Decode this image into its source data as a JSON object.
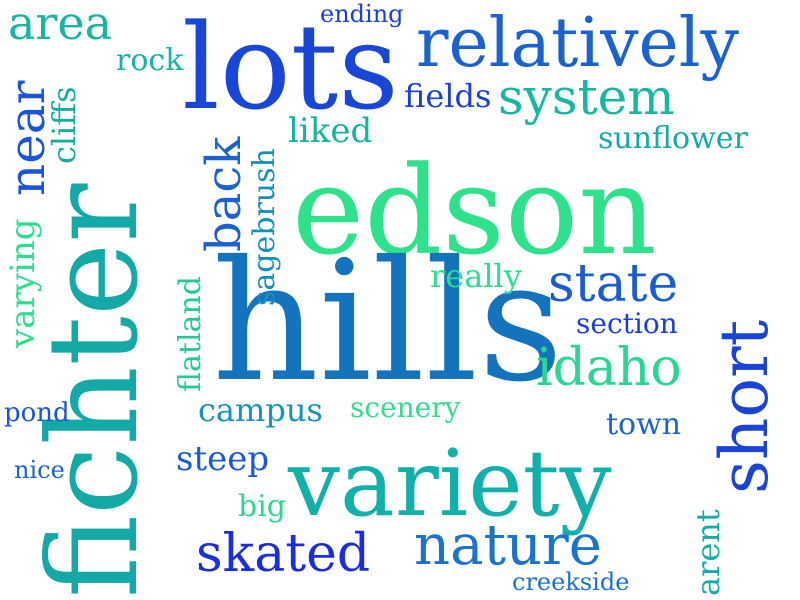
{
  "words": {
    "edson": "edson",
    "hills": "hills",
    "fichter": "fichter",
    "lots": "lots",
    "relatively": "relatively",
    "variety": "variety",
    "system": "system",
    "area": "area",
    "near": "near",
    "back": "back",
    "short": "short",
    "state": "state",
    "idaho": "idaho",
    "nature": "nature",
    "skated": "skated",
    "steep": "steep",
    "campus": "campus",
    "scenery": "scenery",
    "section": "section",
    "really": "really",
    "sunflower": "sunflower",
    "fields": "fields",
    "liked": "liked",
    "ending": "ending",
    "rock": "rock",
    "cliffs": "cliffs",
    "varying": "varying",
    "sagebrush": "sagebrush",
    "flatland": "flatland",
    "town": "town",
    "pond": "pond",
    "nice": "nice",
    "big": "big",
    "arent": "arent",
    "creekside": "creekside"
  },
  "colors": {
    "green": "#2fe38c",
    "teal": "#10b1a8",
    "sky": "#1681c2",
    "blue": "#1d56d6",
    "indigo": "#1a2be0"
  }
}
